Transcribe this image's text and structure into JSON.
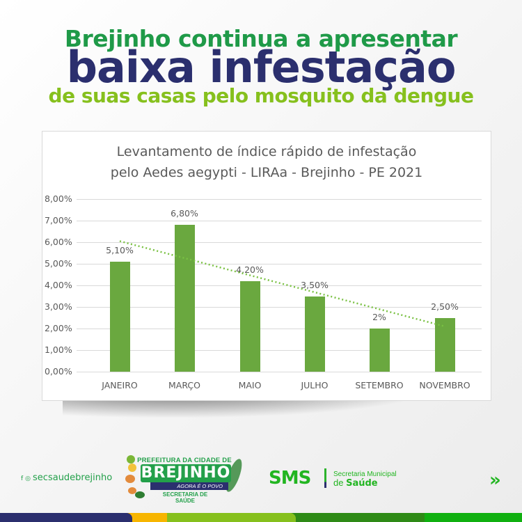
{
  "headline": {
    "line1": "Brejinho continua a apresentar",
    "line2": "baixa infestação",
    "line3": "de suas casas pelo mosquito da dengue",
    "colors": {
      "line1": "#1f9a48",
      "line2": "#2b2f6e",
      "line3": "#86c01d"
    }
  },
  "chart_data": {
    "type": "bar",
    "title": "Levantamento de índice rápido de infestação pelo Aedes aegypti - LIRAa - Brejinho - PE 2021",
    "title_lines": [
      "Levantamento de índice rápido de infestação",
      "pelo Aedes aegypti - LIRAa - Brejinho - PE 2021"
    ],
    "categories": [
      "JANEIRO",
      "MARÇO",
      "MAIO",
      "JULHO",
      "SETEMBRO",
      "NOVEMBRO"
    ],
    "values": [
      5.1,
      6.8,
      4.2,
      3.5,
      2.0,
      2.5
    ],
    "value_labels": [
      "5,10%",
      "6,80%",
      "4,20%",
      "3,50%",
      "2%",
      "2,50%"
    ],
    "xlabel": "",
    "ylabel": "",
    "ylim": [
      0,
      8
    ],
    "yticks": [
      "0,00%",
      "1,00%",
      "2,00%",
      "3,00%",
      "4,00%",
      "5,00%",
      "6,00%",
      "7,00%",
      "8,00%"
    ],
    "grid": true,
    "legend": "none",
    "trendline": {
      "type": "linear",
      "style": "dotted",
      "start": 6.05,
      "end": 2.1
    },
    "bar_color": "#6aa83f",
    "trend_color": "#7ac143"
  },
  "footer": {
    "social_icons": [
      "facebook-icon",
      "instagram-icon"
    ],
    "social_handle": "secsaudebrejinho",
    "logo": {
      "top": "PREFEITURA DA CIDADE DE",
      "name": "BREJINHO",
      "slogan": "AGORA É O POVO",
      "sub1": "SECRETARIA DE",
      "sub2": "SAÚDE"
    },
    "sms": {
      "acronym": "SMS",
      "line1": "Secretaria Municipal",
      "line2_prefix": "de ",
      "line2_bold": "Saúde"
    },
    "next_icon": "»",
    "bands": [
      "#2b2f6e",
      "#f7b500",
      "#86c01d",
      "#2e8a16",
      "#10b010"
    ]
  }
}
